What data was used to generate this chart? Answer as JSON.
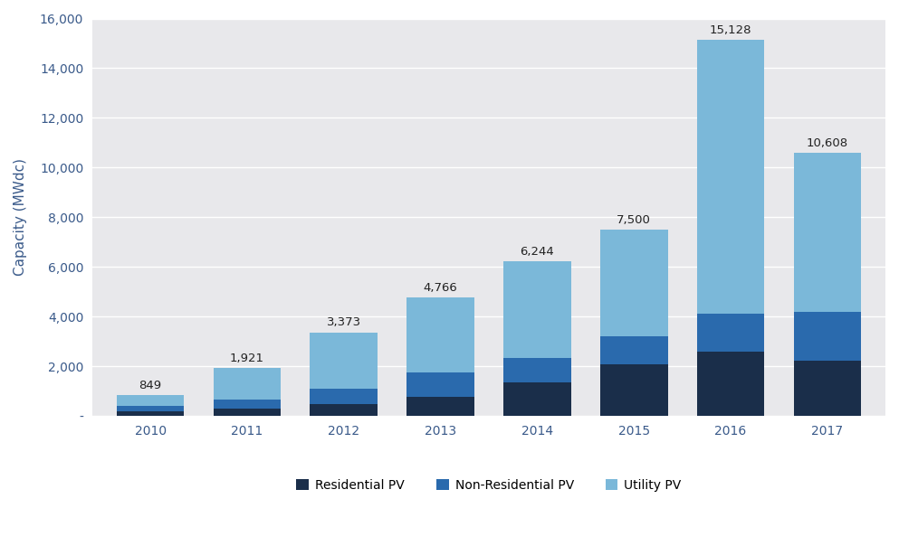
{
  "years": [
    "2010",
    "2011",
    "2012",
    "2013",
    "2014",
    "2015",
    "2016",
    "2017"
  ],
  "residential": [
    199,
    298,
    485,
    762,
    1359,
    2094,
    2583,
    2224
  ],
  "non_residential": [
    195,
    350,
    607,
    1001,
    972,
    1106,
    1545,
    1976
  ],
  "utility": [
    455,
    1273,
    2281,
    3003,
    3913,
    4300,
    11000,
    6408
  ],
  "totals": [
    849,
    1921,
    3373,
    4766,
    6244,
    7500,
    15128,
    10608
  ],
  "color_residential": "#1a2e4a",
  "color_non_residential": "#2a6aad",
  "color_utility": "#7bb8d9",
  "plot_bg_color": "#e8e8eb",
  "outer_bg_color": "#ffffff",
  "ylabel": "Capacity (MWdc)",
  "ylim": [
    0,
    16000
  ],
  "yticks": [
    0,
    2000,
    4000,
    6000,
    8000,
    10000,
    12000,
    14000,
    16000
  ],
  "legend_labels": [
    "Residential PV",
    "Non-Residential PV",
    "Utility PV"
  ],
  "bar_width": 0.7,
  "label_fontsize": 9.5,
  "tick_fontsize": 10,
  "ylabel_fontsize": 11,
  "axis_label_color": "#3a5a8a",
  "tick_label_color": "#3a5a8a"
}
